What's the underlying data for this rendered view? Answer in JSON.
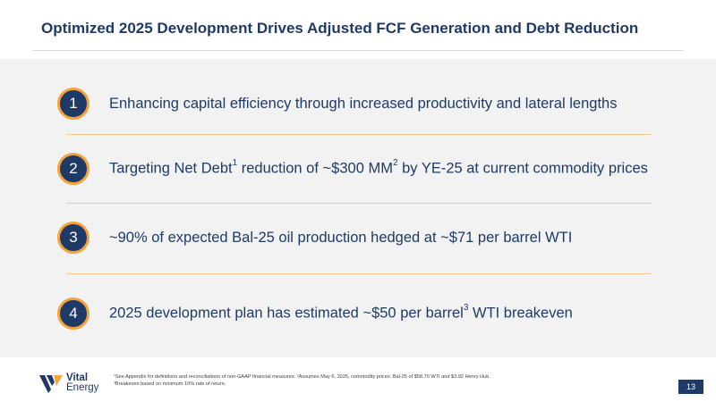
{
  "title": "Optimized 2025 Development Drives Adjusted FCF Generation and Debt Reduction",
  "items": [
    {
      "number": "1",
      "text": "Enhancing capital efficiency through increased productivity and lateral lengths"
    },
    {
      "number": "2",
      "text_a": "Targeting Net Debt",
      "sup_a": "1",
      "text_b": " reduction of ~$300 MM",
      "sup_b": "2",
      "text_c": " by YE-25 at current commodity prices"
    },
    {
      "number": "3",
      "text": "~90% of expected Bal-25 oil production hedged at ~$71 per barrel WTI"
    },
    {
      "number": "4",
      "text_a": "2025 development plan has estimated ~$50 per barrel",
      "sup_a": "3",
      "text_b": " WTI breakeven"
    }
  ],
  "footer": {
    "logo_line1": "Vital",
    "logo_line2": "Energy",
    "footnote_1": "¹See Appendix for definitions and reconciliations of non-GAAP financial measures. ²Assumes May 6, 2025, commodity prices. Bal-25 of $58.70 WTI and $3.92 Henry Hub.",
    "footnote_2": "³Breakeven based on minimum 10% rate of return.",
    "page_number": "13"
  },
  "colors": {
    "navy": "#1f3a66",
    "orange": "#f5a23a",
    "panel": "#f2f2f2"
  }
}
